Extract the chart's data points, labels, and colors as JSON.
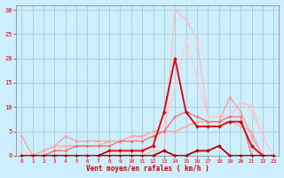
{
  "xlabel": "Vent moyen/en rafales ( km/h )",
  "background_color": "#cceeff",
  "grid_color": "#aacccc",
  "xlim": [
    -0.5,
    23.5
  ],
  "ylim": [
    0,
    31
  ],
  "xticks": [
    0,
    1,
    2,
    3,
    4,
    5,
    6,
    7,
    8,
    9,
    10,
    11,
    12,
    13,
    14,
    15,
    16,
    17,
    18,
    19,
    20,
    21,
    22,
    23
  ],
  "yticks": [
    0,
    5,
    10,
    15,
    20,
    25,
    30
  ],
  "series": [
    {
      "x": [
        0,
        1,
        2,
        3,
        4,
        5,
        6,
        7,
        8,
        9,
        10,
        11,
        12,
        13,
        14,
        15,
        16,
        17,
        18,
        19,
        20,
        21,
        22,
        23
      ],
      "y": [
        0,
        0,
        0,
        0,
        0,
        0,
        0,
        0,
        0,
        0,
        0,
        0,
        1,
        1,
        30,
        28,
        24,
        8,
        8,
        8,
        11,
        10,
        4,
        0
      ],
      "color": "#ffbbbb",
      "lw": 0.9,
      "marker": "D",
      "ms": 1.5,
      "zorder": 2
    },
    {
      "x": [
        0,
        1,
        2,
        3,
        4,
        5,
        6,
        7,
        8,
        9,
        10,
        11,
        12,
        13,
        14,
        15,
        16,
        17,
        18,
        19,
        20,
        21,
        22,
        23
      ],
      "y": [
        4,
        0,
        1,
        2,
        4,
        3,
        3,
        3,
        3,
        3,
        4,
        4,
        5,
        5,
        5,
        6,
        7,
        7,
        7,
        12,
        9,
        4,
        0,
        0
      ],
      "color": "#ff9999",
      "lw": 0.9,
      "marker": "D",
      "ms": 1.5,
      "zorder": 3
    },
    {
      "x": [
        0,
        1,
        2,
        3,
        4,
        5,
        6,
        7,
        8,
        9,
        10,
        11,
        12,
        13,
        14,
        15,
        16,
        17,
        18,
        19,
        20,
        21,
        22,
        23
      ],
      "y": [
        0,
        0,
        1,
        2,
        2,
        2,
        2,
        2,
        3,
        3,
        4,
        4,
        5,
        5,
        5,
        6,
        7,
        7,
        7,
        7,
        6,
        5,
        0,
        0
      ],
      "color": "#ffaaaa",
      "lw": 0.9,
      "marker": "D",
      "ms": 1.5,
      "zorder": 3
    },
    {
      "x": [
        0,
        1,
        2,
        3,
        4,
        5,
        6,
        7,
        8,
        9,
        10,
        11,
        12,
        13,
        14,
        15,
        16,
        17,
        18,
        19,
        20,
        21,
        22,
        23
      ],
      "y": [
        1,
        0,
        0,
        1,
        2,
        2,
        2,
        2,
        3,
        3,
        3,
        4,
        5,
        6,
        14,
        24,
        16,
        8,
        8,
        8,
        11,
        9,
        4,
        0
      ],
      "color": "#ffcccc",
      "lw": 0.9,
      "marker": "D",
      "ms": 1.5,
      "zorder": 2
    },
    {
      "x": [
        0,
        1,
        2,
        3,
        4,
        5,
        6,
        7,
        8,
        9,
        10,
        11,
        12,
        13,
        14,
        15,
        16,
        17,
        18,
        19,
        20,
        21,
        22,
        23
      ],
      "y": [
        0,
        0,
        0,
        1,
        1,
        2,
        2,
        2,
        2,
        3,
        3,
        3,
        4,
        5,
        8,
        9,
        8,
        7,
        7,
        8,
        8,
        0,
        0,
        0
      ],
      "color": "#ff6666",
      "lw": 0.9,
      "marker": "D",
      "ms": 1.5,
      "zorder": 3
    },
    {
      "x": [
        0,
        1,
        2,
        3,
        4,
        5,
        6,
        7,
        8,
        9,
        10,
        11,
        12,
        13,
        14,
        15,
        16,
        17,
        18,
        19,
        20,
        21,
        22,
        23
      ],
      "y": [
        0,
        0,
        0,
        0,
        0,
        0,
        0,
        0,
        1,
        1,
        1,
        1,
        2,
        9,
        20,
        9,
        6,
        6,
        6,
        7,
        7,
        2,
        0,
        0
      ],
      "color": "#dd0000",
      "lw": 1.3,
      "marker": "D",
      "ms": 2.0,
      "zorder": 5
    },
    {
      "x": [
        0,
        1,
        2,
        3,
        4,
        5,
        6,
        7,
        8,
        9,
        10,
        11,
        12,
        13,
        14,
        15,
        16,
        17,
        18,
        19,
        20,
        21,
        22,
        23
      ],
      "y": [
        0,
        0,
        0,
        0,
        0,
        0,
        0,
        0,
        0,
        0,
        0,
        0,
        0,
        1,
        0,
        0,
        1,
        1,
        2,
        0,
        0,
        0,
        0,
        0
      ],
      "color": "#aa0000",
      "lw": 1.3,
      "marker": "D",
      "ms": 2.0,
      "zorder": 6
    }
  ]
}
